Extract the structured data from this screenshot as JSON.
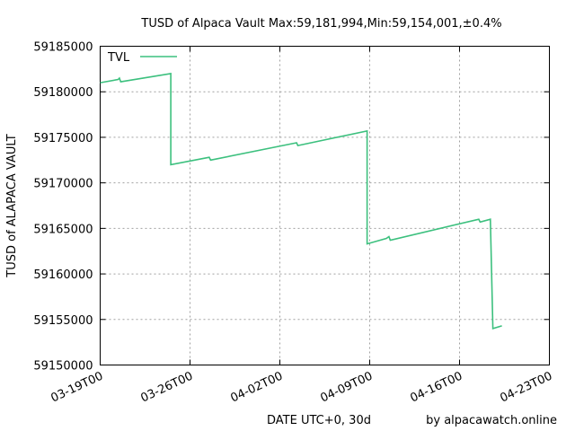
{
  "chart_data": {
    "type": "line",
    "title": "TUSD of Alpaca Vault Max:59,181,994,Min:59,154,001,±0.4%",
    "xlabel": "DATE UTC+0, 30d",
    "ylabel": "TUSD of ALAPACA VAULT",
    "credit": "by alpacawatch.online",
    "x_ticks": [
      "03-19T00",
      "03-26T00",
      "04-02T00",
      "04-09T00",
      "04-16T00",
      "04-23T00"
    ],
    "y_ticks": [
      "59150000",
      "59155000",
      "59160000",
      "59165000",
      "59170000",
      "59175000",
      "59180000",
      "59185000"
    ],
    "xlim": [
      0,
      35
    ],
    "ylim": [
      59150000,
      59185000
    ],
    "grid": true,
    "legend_position": "top-left",
    "color": "#3cc07e",
    "series": [
      {
        "name": "TVL",
        "points": [
          [
            0.0,
            59181000
          ],
          [
            1.4,
            59181350
          ],
          [
            1.5,
            59181500
          ],
          [
            1.6,
            59181100
          ],
          [
            5.5,
            59182000
          ],
          [
            5.5,
            59172000
          ],
          [
            8.5,
            59172800
          ],
          [
            8.6,
            59172500
          ],
          [
            15.3,
            59174400
          ],
          [
            15.4,
            59174100
          ],
          [
            20.8,
            59175700
          ],
          [
            20.8,
            59163300
          ],
          [
            22.3,
            59163900
          ],
          [
            22.5,
            59164100
          ],
          [
            22.6,
            59163700
          ],
          [
            29.5,
            59166000
          ],
          [
            29.6,
            59165700
          ],
          [
            30.4,
            59166000
          ],
          [
            30.5,
            59160000
          ],
          [
            30.6,
            59154000
          ],
          [
            31.3,
            59154300
          ]
        ]
      }
    ]
  }
}
